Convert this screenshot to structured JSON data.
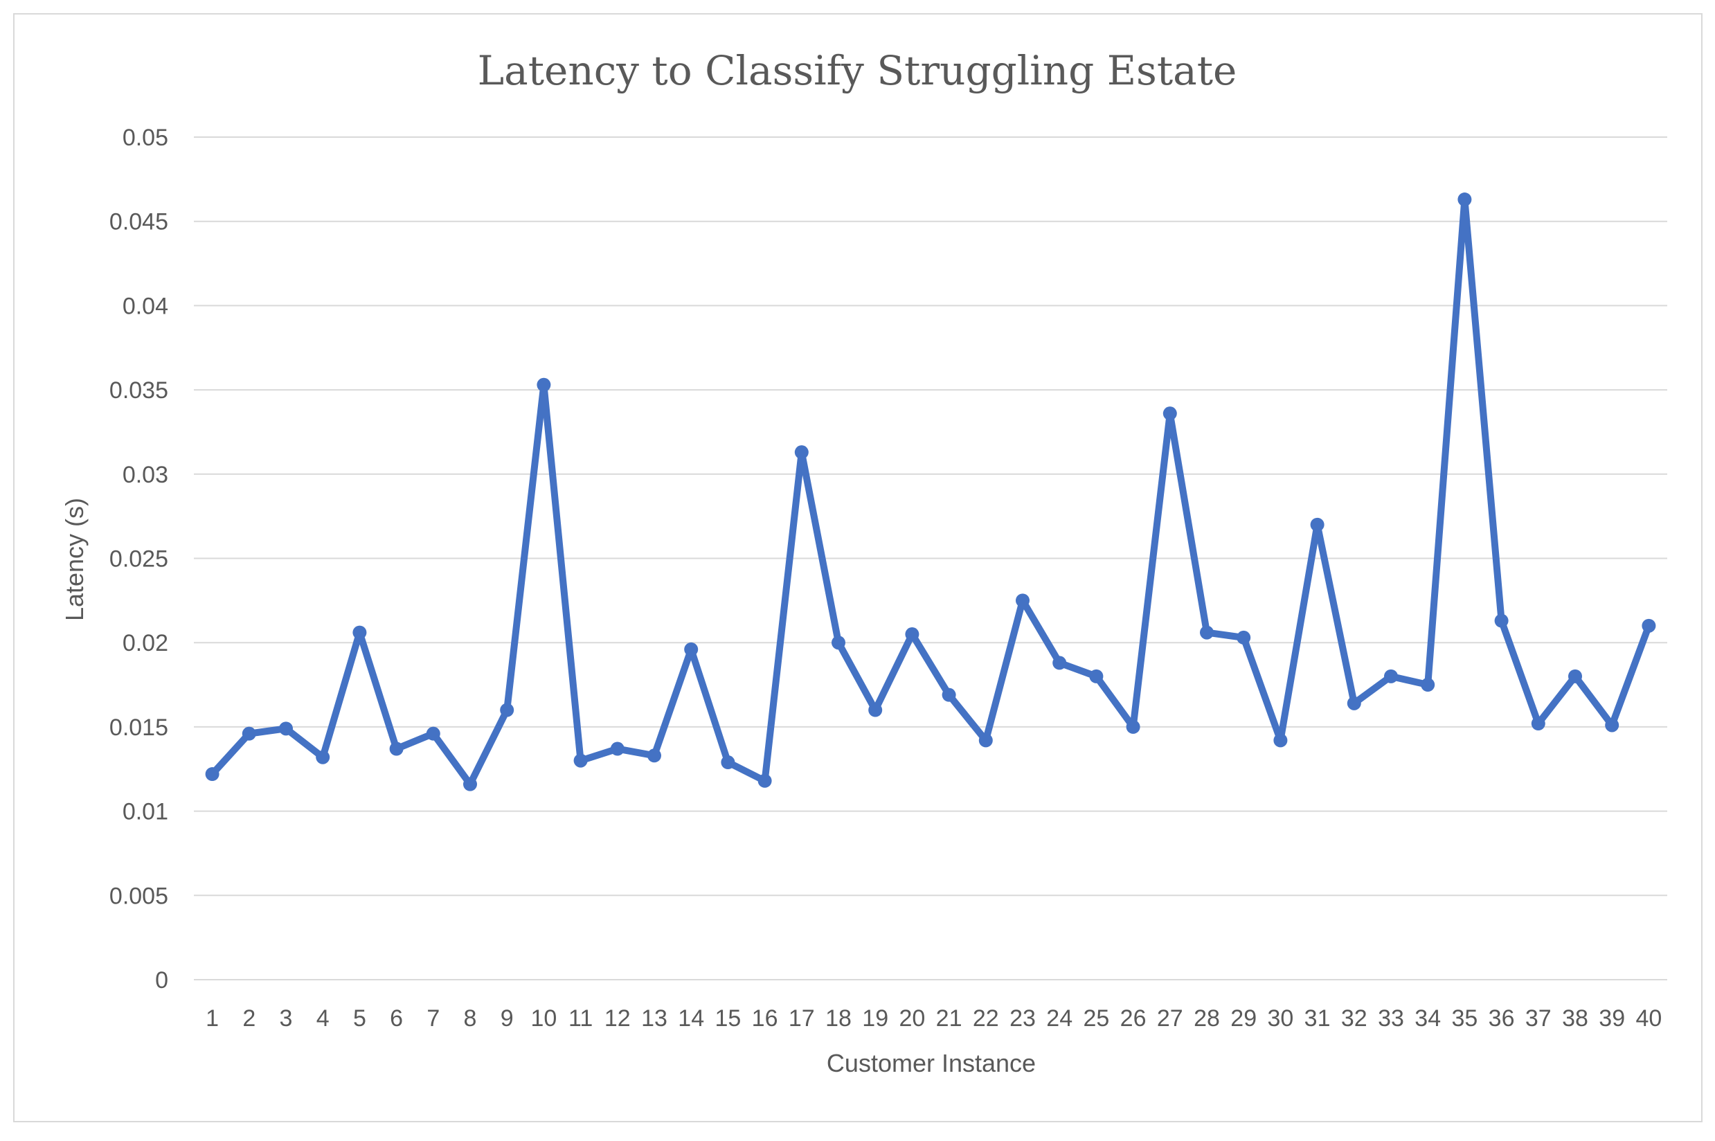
{
  "chart_data": {
    "type": "line",
    "title": "Latency to Classify Struggling Estate",
    "xlabel": "Customer Instance",
    "ylabel": "Latency (s)",
    "ylim": [
      0,
      0.05
    ],
    "yticks": [
      "0",
      "0.005",
      "0.01",
      "0.015",
      "0.02",
      "0.025",
      "0.03",
      "0.035",
      "0.04",
      "0.045",
      "0.05"
    ],
    "ytick_values": [
      0,
      0.005,
      0.01,
      0.015,
      0.02,
      0.025,
      0.03,
      0.035,
      0.04,
      0.045,
      0.05
    ],
    "categories": [
      "1",
      "2",
      "3",
      "4",
      "5",
      "6",
      "7",
      "8",
      "9",
      "10",
      "11",
      "12",
      "13",
      "14",
      "15",
      "16",
      "17",
      "18",
      "19",
      "20",
      "21",
      "22",
      "23",
      "24",
      "25",
      "26",
      "27",
      "28",
      "29",
      "30",
      "31",
      "32",
      "33",
      "34",
      "35",
      "36",
      "37",
      "38",
      "39",
      "40"
    ],
    "series": [
      {
        "values": [
          0.0122,
          0.0146,
          0.0149,
          0.0132,
          0.0206,
          0.0137,
          0.0146,
          0.0116,
          0.016,
          0.0353,
          0.013,
          0.0137,
          0.0133,
          0.0196,
          0.0129,
          0.0118,
          0.0313,
          0.02,
          0.016,
          0.0205,
          0.0169,
          0.0142,
          0.0225,
          0.0188,
          0.018,
          0.015,
          0.0336,
          0.0206,
          0.0203,
          0.0142,
          0.027,
          0.0164,
          0.018,
          0.0175,
          0.0463,
          0.0213,
          0.0152,
          0.018,
          0.0151,
          0.021
        ],
        "color": "#4472c4"
      }
    ],
    "grid": true,
    "legend": "none"
  }
}
